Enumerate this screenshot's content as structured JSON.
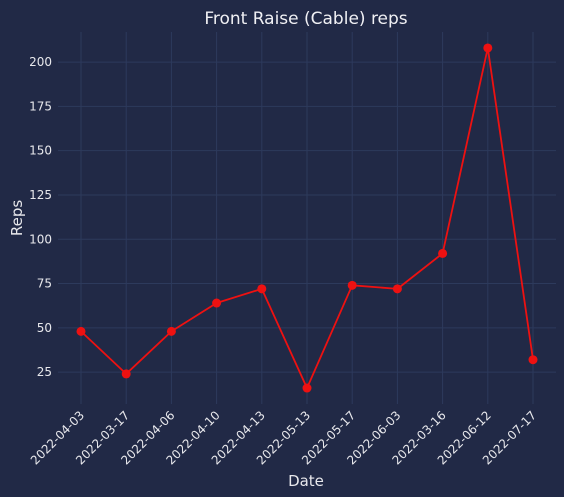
{
  "chart_data": {
    "type": "line",
    "title": "Front Raise (Cable) reps",
    "xlabel": "Date",
    "ylabel": "Reps",
    "categories": [
      "2022-04-03",
      "2022-03-17",
      "2022-04-06",
      "2022-04-10",
      "2022-04-13",
      "2022-05-13",
      "2022-05-17",
      "2022-06-03",
      "2022-03-16",
      "2022-06-12",
      "2022-07-17"
    ],
    "series": [
      {
        "values": [
          48,
          24,
          48,
          64,
          72,
          16,
          74,
          72,
          92,
          208,
          32
        ]
      }
    ],
    "y_ticks": [
      25,
      50,
      75,
      100,
      125,
      150,
      175,
      200
    ],
    "ylim": [
      7,
      217
    ],
    "grid": true,
    "line_color": "#ee1111",
    "background_color": "#212946"
  }
}
